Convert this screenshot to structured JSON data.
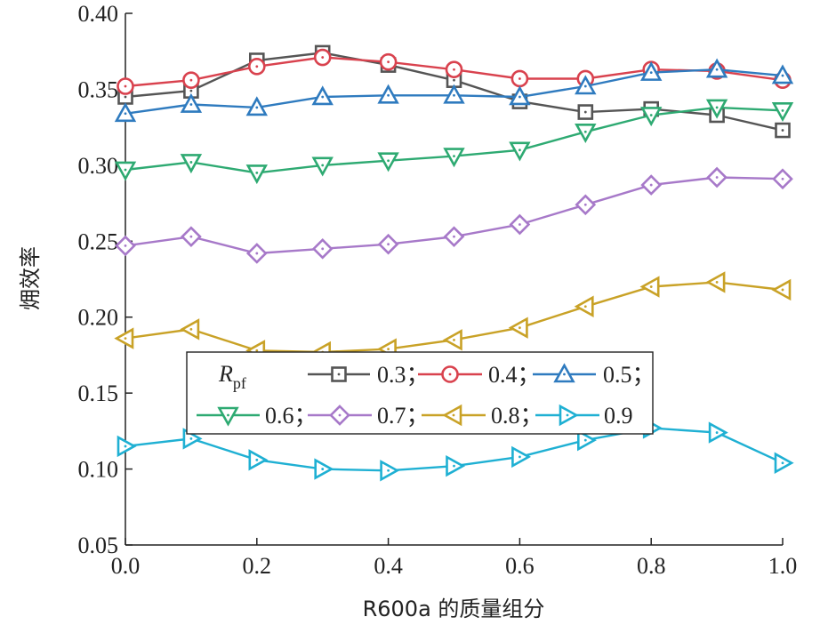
{
  "chart_data": {
    "type": "line",
    "xlabel": "R600a 的质量组分",
    "ylabel": "㶲效率",
    "xlim": [
      0.0,
      1.0
    ],
    "ylim": [
      0.05,
      0.4
    ],
    "x_ticks": [
      "0.0",
      "0.2",
      "0.4",
      "0.6",
      "0.8",
      "1.0"
    ],
    "y_ticks": [
      "0.05",
      "0.10",
      "0.15",
      "0.20",
      "0.25",
      "0.30",
      "0.35",
      "0.40"
    ],
    "x": [
      0.0,
      0.1,
      0.2,
      0.3,
      0.4,
      0.5,
      0.6,
      0.7,
      0.8,
      0.9,
      1.0
    ],
    "legend": {
      "title_main": "R",
      "title_sub": "pf",
      "placement": "center-left"
    },
    "series": [
      {
        "name": "0.3",
        "legend_label": "0.3；",
        "color": "#555555",
        "marker": "square",
        "values": [
          0.345,
          0.349,
          0.369,
          0.374,
          0.366,
          0.356,
          0.342,
          0.335,
          0.337,
          0.333,
          0.323
        ]
      },
      {
        "name": "0.4",
        "legend_label": "0.4；",
        "color": "#d9424e",
        "marker": "circle",
        "values": [
          0.352,
          0.356,
          0.365,
          0.371,
          0.368,
          0.363,
          0.357,
          0.357,
          0.363,
          0.362,
          0.356
        ]
      },
      {
        "name": "0.5",
        "legend_label": "0.5；",
        "color": "#2f7bbf",
        "marker": "triangle-up",
        "values": [
          0.334,
          0.34,
          0.338,
          0.345,
          0.346,
          0.346,
          0.345,
          0.352,
          0.361,
          0.363,
          0.359
        ]
      },
      {
        "name": "0.6",
        "legend_label": "0.6；",
        "color": "#2eaa72",
        "marker": "triangle-down",
        "values": [
          0.297,
          0.302,
          0.295,
          0.3,
          0.303,
          0.306,
          0.31,
          0.322,
          0.333,
          0.338,
          0.336
        ]
      },
      {
        "name": "0.7",
        "legend_label": "0.7；",
        "color": "#a779c9",
        "marker": "diamond",
        "values": [
          0.247,
          0.253,
          0.242,
          0.245,
          0.248,
          0.253,
          0.261,
          0.274,
          0.287,
          0.292,
          0.291
        ]
      },
      {
        "name": "0.8",
        "legend_label": "0.8；",
        "color": "#c9a227",
        "marker": "triangle-left",
        "values": [
          0.186,
          0.192,
          0.178,
          0.177,
          0.179,
          0.185,
          0.193,
          0.207,
          0.22,
          0.223,
          0.218
        ]
      },
      {
        "name": "0.9",
        "legend_label": "0.9",
        "color": "#1fb0d3",
        "marker": "triangle-right",
        "values": [
          0.115,
          0.12,
          0.106,
          0.1,
          0.099,
          0.102,
          0.108,
          0.119,
          0.127,
          0.124,
          0.104
        ]
      }
    ]
  }
}
